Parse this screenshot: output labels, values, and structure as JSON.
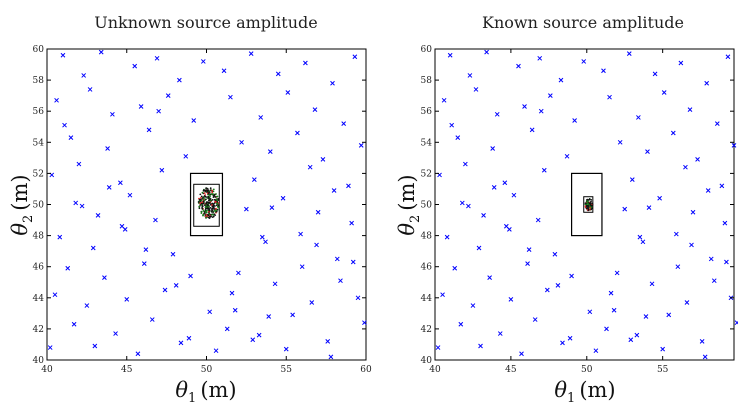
{
  "chart_data": [
    {
      "type": "scatter",
      "title": "Unknown source amplitude",
      "xlabel": "(m)",
      "ylabel": "(m)",
      "xlabel_symbol": "θ",
      "xlabel_subscript": "1",
      "ylabel_symbol": "θ",
      "ylabel_subscript": "2",
      "xlim": [
        40,
        60
      ],
      "ylim": [
        40,
        60
      ],
      "xticks": [
        40,
        45,
        50,
        55,
        60
      ],
      "yticks": [
        40,
        42,
        44,
        46,
        48,
        50,
        52,
        54,
        56,
        58,
        60
      ],
      "grid": false,
      "marker_color": "#0000ff",
      "box_outer": {
        "x": [
          49,
          51
        ],
        "y": [
          48,
          52
        ]
      },
      "box_inner": {
        "x": [
          49.2,
          50.8
        ],
        "y": [
          48.6,
          51.3
        ]
      },
      "cluster": {
        "x": [
          49.5,
          50.8
        ],
        "y": [
          49.1,
          51.1
        ],
        "colors": [
          "#111111",
          "#1a7a1a",
          "#dd2222"
        ]
      },
      "series": [
        {
          "x": [
            41.0,
            42.3,
            43.4,
            45.5,
            46.9,
            48.3,
            49.8,
            51.1,
            52.8,
            54.5,
            56.2,
            57.9,
            59.3,
            40.6,
            42.7,
            44.1,
            45.9,
            47.6,
            49.2,
            51.5,
            53.4,
            55.1,
            56.8,
            58.6,
            41.5,
            43.8,
            46.4,
            48.7,
            52.2,
            54.0,
            55.7,
            57.3,
            59.7,
            40.3,
            42.0,
            44.6,
            47.2,
            53.0,
            56.5,
            58.9,
            41.8,
            43.2,
            45.2,
            46.8,
            52.5,
            54.8,
            57.0,
            59.1,
            40.8,
            42.9,
            44.9,
            47.9,
            53.7,
            55.9,
            58.2,
            41.3,
            43.6,
            46.1,
            48.1,
            52.0,
            54.3,
            56.0,
            58.4,
            40.5,
            42.5,
            45.0,
            47.4,
            51.8,
            53.9,
            56.6,
            59.5,
            41.7,
            44.3,
            46.6,
            48.9,
            51.3,
            53.3,
            55.4,
            57.6,
            59.9,
            40.2,
            43.0,
            45.7,
            48.4,
            50.6,
            52.9,
            55.0,
            57.8,
            41.1,
            43.9,
            46.2,
            49.0,
            51.6,
            54.1,
            56.9,
            59.2,
            42.2,
            44.7,
            47.0,
            50.2,
            53.5,
            58.0
          ],
          "y": [
            59.6,
            58.3,
            59.8,
            58.9,
            59.4,
            58.0,
            59.2,
            58.6,
            59.7,
            58.4,
            59.1,
            57.8,
            59.5,
            56.7,
            57.4,
            55.8,
            56.3,
            57.0,
            55.4,
            56.9,
            55.6,
            57.2,
            56.1,
            55.2,
            54.3,
            53.6,
            54.8,
            53.1,
            54.0,
            53.4,
            54.6,
            52.9,
            53.8,
            51.9,
            52.6,
            51.4,
            52.2,
            51.6,
            52.4,
            51.2,
            50.1,
            49.3,
            50.6,
            49.0,
            49.7,
            50.4,
            49.5,
            48.8,
            47.9,
            47.2,
            48.4,
            46.8,
            47.6,
            48.1,
            46.5,
            45.9,
            45.3,
            46.2,
            44.8,
            45.6,
            44.9,
            46.0,
            45.1,
            44.2,
            43.5,
            43.9,
            44.5,
            43.2,
            42.8,
            43.7,
            44.0,
            42.3,
            41.7,
            42.6,
            41.4,
            42.0,
            41.6,
            42.9,
            41.2,
            42.4,
            40.8,
            40.9,
            40.4,
            41.1,
            40.6,
            41.3,
            40.7,
            40.2,
            55.1,
            51.1,
            47.1,
            45.4,
            44.3,
            49.8,
            47.4,
            46.3,
            49.9,
            48.6,
            56.0,
            43.1,
            47.9,
            50.9
          ]
        }
      ]
    },
    {
      "type": "scatter",
      "title": "Known source amplitude",
      "xlabel": "(m)",
      "ylabel": "(m)",
      "xlabel_symbol": "θ",
      "xlabel_subscript": "1",
      "ylabel_symbol": "θ",
      "ylabel_subscript": "2",
      "xlim": [
        40,
        60
      ],
      "ylim": [
        40,
        60
      ],
      "xticks": [
        40,
        45,
        50,
        55
      ],
      "yticks": [
        40,
        42,
        44,
        46,
        48,
        50,
        52,
        54,
        56,
        58,
        60
      ],
      "grid": false,
      "marker_color": "#0000ff",
      "box_outer": {
        "x": [
          49,
          51
        ],
        "y": [
          48,
          52
        ]
      },
      "box_inner": {
        "x": [
          49.8,
          50.4
        ],
        "y": [
          49.5,
          50.5
        ]
      },
      "cluster": {
        "x": [
          49.9,
          50.4
        ],
        "y": [
          49.6,
          50.4
        ],
        "colors": [
          "#111111",
          "#1a7a1a",
          "#dd2222"
        ]
      },
      "series": [
        {
          "x": [
            41.0,
            42.3,
            43.4,
            45.5,
            46.9,
            48.3,
            49.8,
            51.1,
            52.8,
            54.5,
            56.2,
            57.9,
            59.3,
            40.6,
            42.7,
            44.1,
            45.9,
            47.6,
            49.2,
            51.5,
            53.4,
            55.1,
            56.8,
            58.6,
            41.5,
            43.8,
            46.4,
            48.7,
            52.2,
            54.0,
            55.7,
            57.3,
            59.7,
            40.3,
            42.0,
            44.6,
            47.2,
            53.0,
            56.5,
            58.9,
            41.8,
            43.2,
            45.2,
            46.8,
            52.5,
            54.8,
            57.0,
            59.1,
            40.8,
            42.9,
            44.9,
            47.9,
            53.7,
            55.9,
            58.2,
            41.3,
            43.6,
            46.1,
            48.1,
            52.0,
            54.3,
            56.0,
            58.4,
            40.5,
            42.5,
            45.0,
            47.4,
            51.8,
            53.9,
            56.6,
            59.5,
            41.7,
            44.3,
            46.6,
            48.9,
            51.3,
            53.3,
            55.4,
            57.6,
            59.9,
            40.2,
            43.0,
            45.7,
            48.4,
            50.6,
            52.9,
            55.0,
            57.8,
            41.1,
            43.9,
            46.2,
            49.0,
            51.6,
            54.1,
            56.9,
            59.2,
            42.2,
            44.7,
            47.0,
            50.2,
            53.5,
            58.0
          ],
          "y": [
            59.6,
            58.3,
            59.8,
            58.9,
            59.4,
            58.0,
            59.2,
            58.6,
            59.7,
            58.4,
            59.1,
            57.8,
            59.5,
            56.7,
            57.4,
            55.8,
            56.3,
            57.0,
            55.4,
            56.9,
            55.6,
            57.2,
            56.1,
            55.2,
            54.3,
            53.6,
            54.8,
            53.1,
            54.0,
            53.4,
            54.6,
            52.9,
            53.8,
            51.9,
            52.6,
            51.4,
            52.2,
            51.6,
            52.4,
            51.2,
            50.1,
            49.3,
            50.6,
            49.0,
            49.7,
            50.4,
            49.5,
            48.8,
            47.9,
            47.2,
            48.4,
            46.8,
            47.6,
            48.1,
            46.5,
            45.9,
            45.3,
            46.2,
            44.8,
            45.6,
            44.9,
            46.0,
            45.1,
            44.2,
            43.5,
            43.9,
            44.5,
            43.2,
            42.8,
            43.7,
            44.0,
            42.3,
            41.7,
            42.6,
            41.4,
            42.0,
            41.6,
            42.9,
            41.2,
            42.4,
            40.8,
            40.9,
            40.4,
            41.1,
            40.6,
            41.3,
            40.7,
            40.2,
            55.1,
            51.1,
            47.1,
            45.4,
            44.3,
            49.8,
            47.4,
            46.3,
            49.9,
            48.6,
            56.0,
            43.1,
            47.9,
            50.9
          ]
        }
      ]
    }
  ]
}
